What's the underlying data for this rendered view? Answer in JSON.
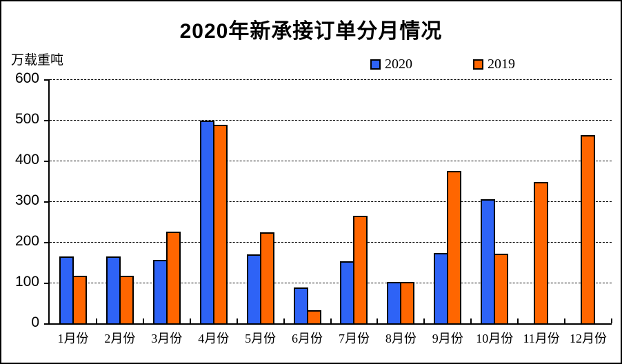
{
  "chart_data": {
    "type": "bar",
    "title": "2020年新承接订单分月情况",
    "unit_label": "万载重吨",
    "xlabel": "",
    "ylabel": "万载重吨",
    "categories": [
      "1月份",
      "2月份",
      "3月份",
      "4月份",
      "5月份",
      "6月份",
      "7月份",
      "8月份",
      "9月份",
      "10月份",
      "11月份",
      "12月份"
    ],
    "series": [
      {
        "name": "2020",
        "color": "#2e63f6",
        "values": [
          165,
          165,
          156,
          498,
          170,
          88,
          152,
          102,
          173,
          305,
          null,
          null
        ]
      },
      {
        "name": "2019",
        "color": "#ff6600",
        "values": [
          117,
          117,
          225,
          489,
          223,
          32,
          264,
          102,
          375,
          172,
          347,
          462
        ]
      }
    ],
    "ylim": [
      0,
      600
    ],
    "ytick_interval": 100,
    "yticks": [
      "0",
      "100",
      "200",
      "300",
      "400",
      "500",
      "600"
    ],
    "grid": "horizontal-dashed",
    "legend_position": "top-center",
    "colors": {
      "series_2020": "#2e63f6",
      "series_2019": "#ff6600",
      "axis": "#000000",
      "background": "#ffffff"
    }
  }
}
